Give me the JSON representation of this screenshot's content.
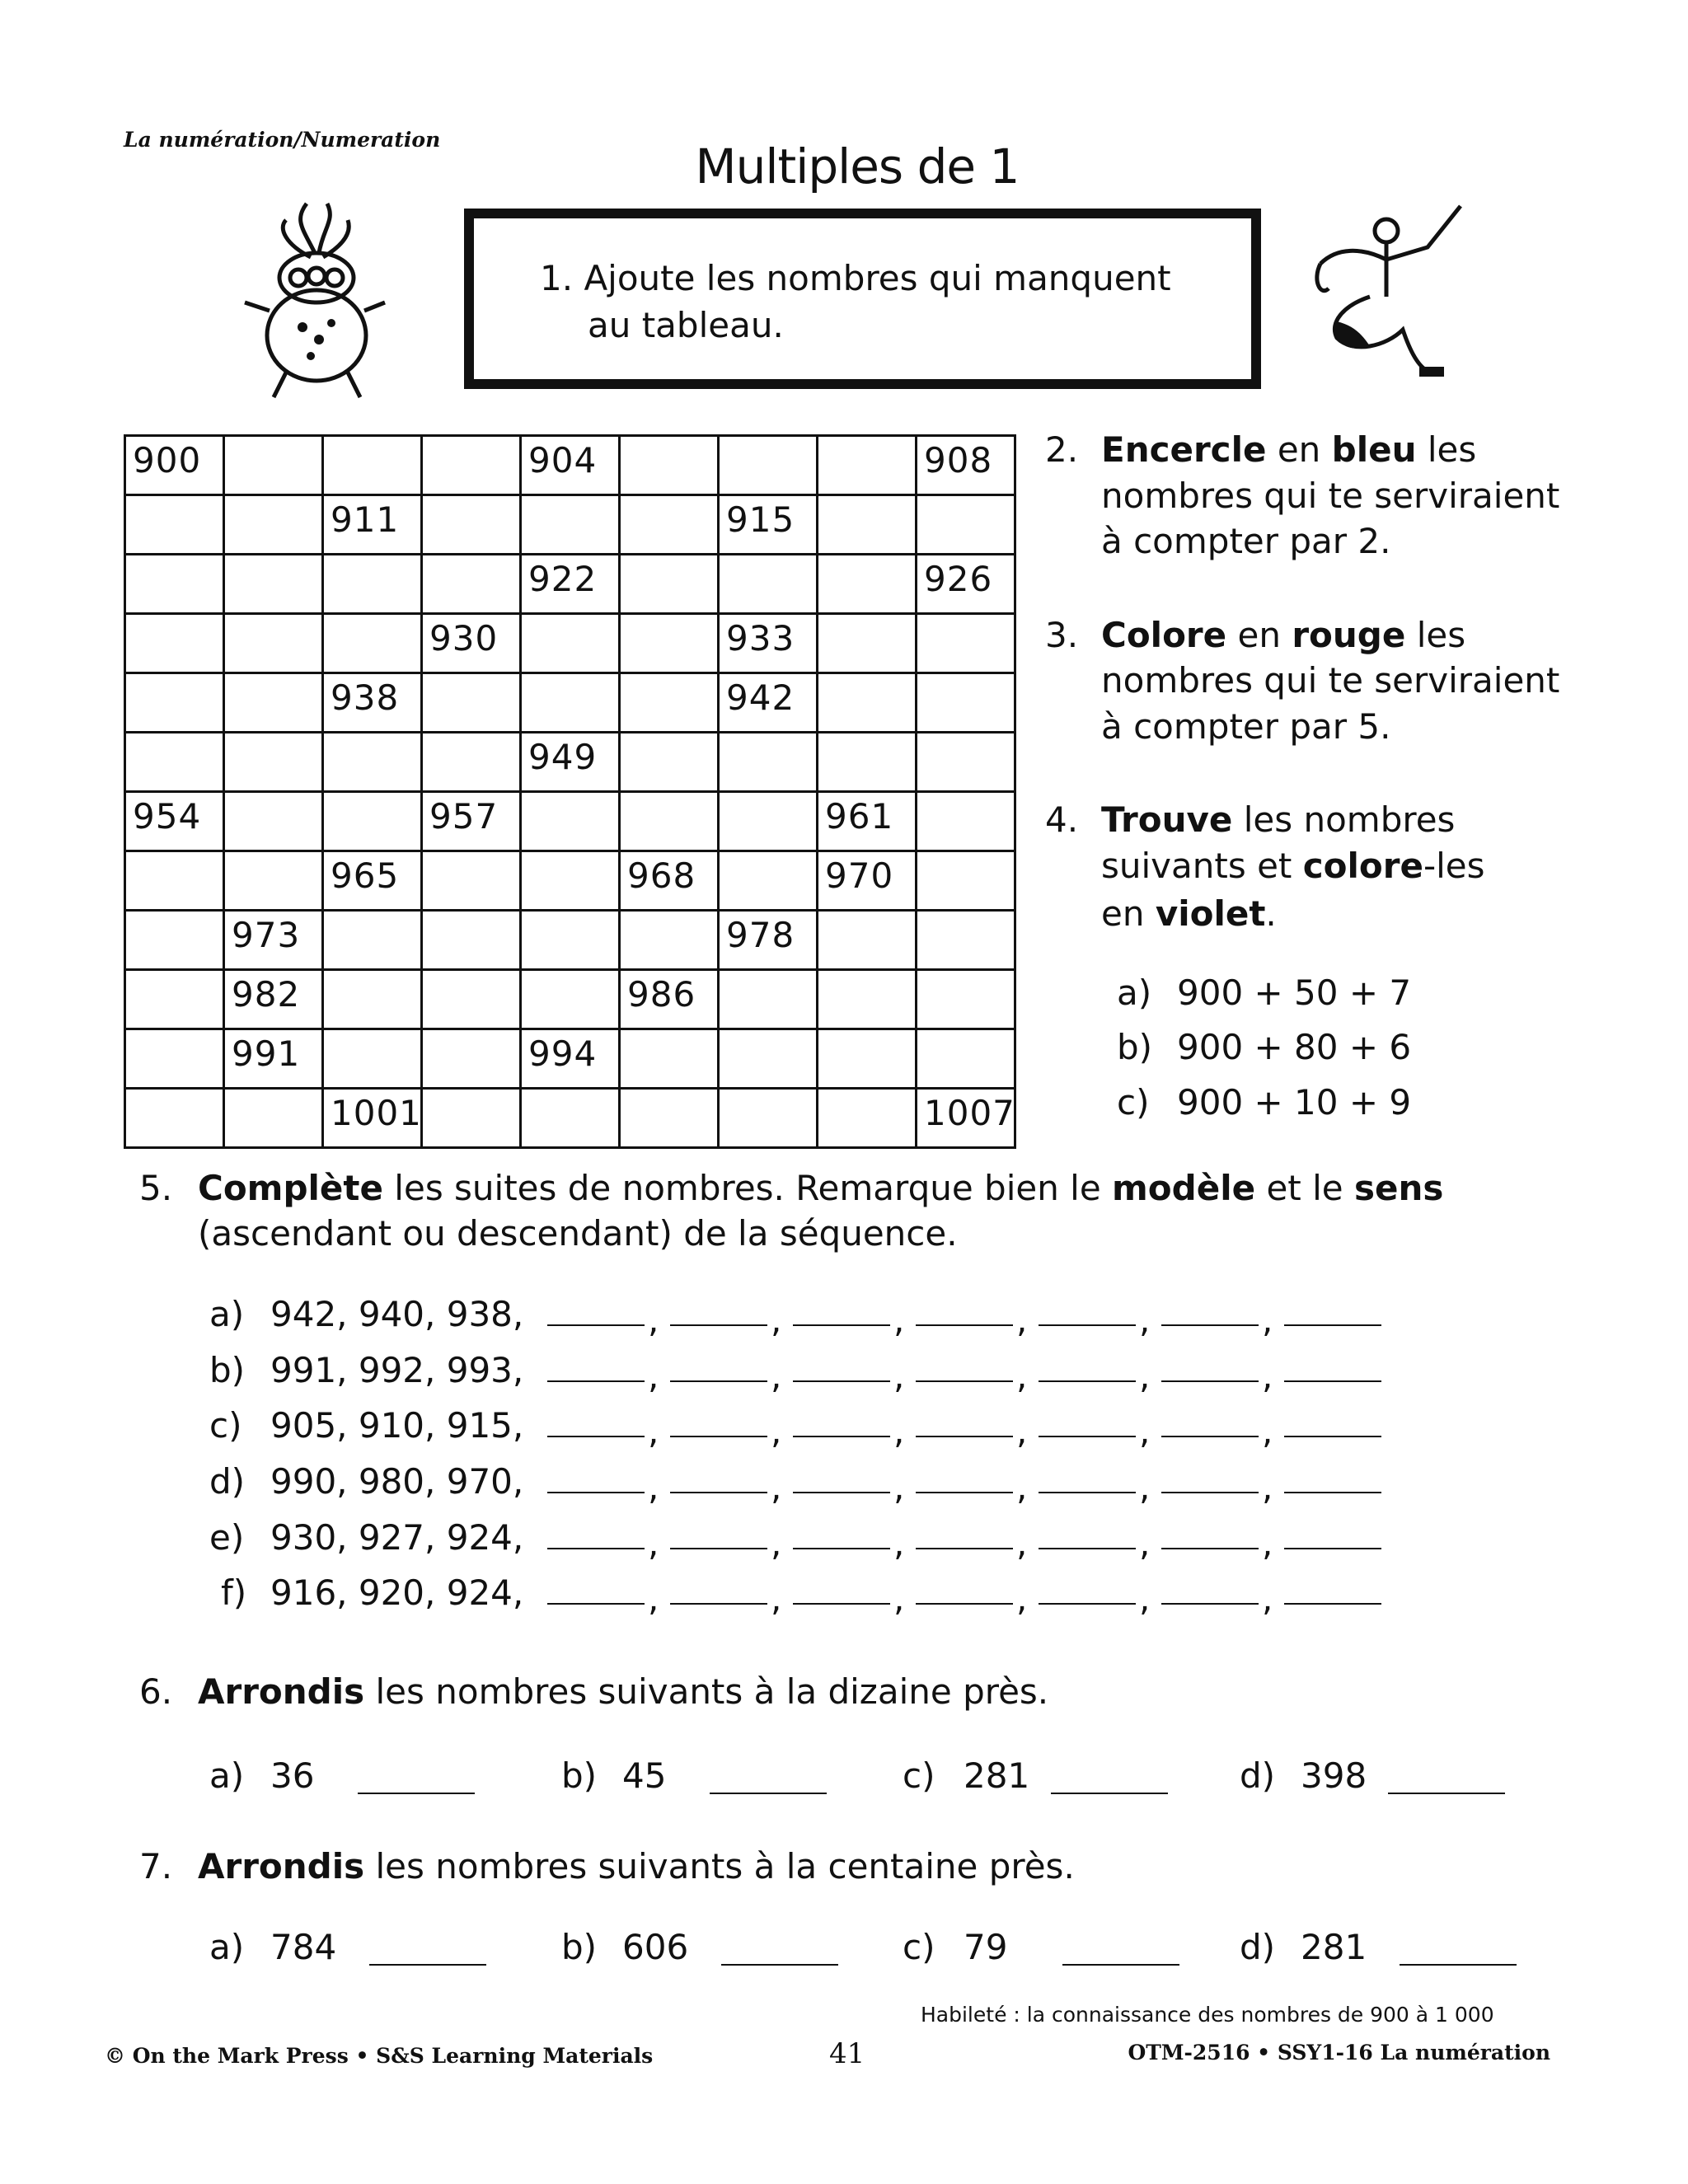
{
  "header": {
    "section": "La numération/Numeration",
    "title": "Multiples de 1"
  },
  "q1": {
    "number": "1.",
    "line1": "Ajoute les nombres qui manquent",
    "line2": "au tableau."
  },
  "grid": {
    "columns": 9,
    "rows": [
      [
        "900",
        "",
        "",
        "",
        "904",
        "",
        "",
        "",
        "908"
      ],
      [
        "",
        "",
        "911",
        "",
        "",
        "",
        "915",
        "",
        ""
      ],
      [
        "",
        "",
        "",
        "",
        "922",
        "",
        "",
        "",
        "926"
      ],
      [
        "",
        "",
        "",
        "930",
        "",
        "",
        "933",
        "",
        ""
      ],
      [
        "",
        "",
        "938",
        "",
        "",
        "",
        "942",
        "",
        ""
      ],
      [
        "",
        "",
        "",
        "",
        "949",
        "",
        "",
        "",
        ""
      ],
      [
        "954",
        "",
        "",
        "957",
        "",
        "",
        "",
        "961",
        ""
      ],
      [
        "",
        "",
        "965",
        "",
        "",
        "968",
        "",
        "970",
        ""
      ],
      [
        "",
        "973",
        "",
        "",
        "",
        "",
        "978",
        "",
        ""
      ],
      [
        "",
        "982",
        "",
        "",
        "",
        "986",
        "",
        "",
        ""
      ],
      [
        "",
        "991",
        "",
        "",
        "994",
        "",
        "",
        "",
        ""
      ],
      [
        "",
        "",
        "1001",
        "",
        "",
        "",
        "",
        "",
        "1007"
      ]
    ]
  },
  "q2": {
    "number": "2.",
    "lines": [
      [
        {
          "t": "Encercle",
          "b": true
        },
        {
          "t": " en ",
          "b": false
        },
        {
          "t": "bleu",
          "b": true
        },
        {
          "t": " les",
          "b": false
        }
      ],
      [
        {
          "t": "nombres qui te serviraient",
          "b": false
        }
      ],
      [
        {
          "t": "à compter par 2.",
          "b": false
        }
      ]
    ]
  },
  "q3": {
    "number": "3.",
    "lines": [
      [
        {
          "t": "Colore",
          "b": true
        },
        {
          "t": " en ",
          "b": false
        },
        {
          "t": "rouge",
          "b": true
        },
        {
          "t": " les",
          "b": false
        }
      ],
      [
        {
          "t": "nombres qui te serviraient",
          "b": false
        }
      ],
      [
        {
          "t": "à compter par 5.",
          "b": false
        }
      ]
    ]
  },
  "q4": {
    "number": "4.",
    "lines": [
      [
        {
          "t": "Trouve",
          "b": true
        },
        {
          "t": " les nombres",
          "b": false
        }
      ],
      [
        {
          "t": "suivants et ",
          "b": false
        },
        {
          "t": "colore",
          "b": true
        },
        {
          "t": "-les",
          "b": false
        }
      ],
      [
        {
          "t": "en ",
          "b": false
        },
        {
          "t": "violet",
          "b": true
        },
        {
          "t": ".",
          "b": false
        }
      ]
    ],
    "items": [
      {
        "label": "a)",
        "expr": "900 + 50 + 7"
      },
      {
        "label": "b)",
        "expr": "900 + 80 + 6"
      },
      {
        "label": "c)",
        "expr": "900 + 10 + 9"
      }
    ]
  },
  "q5": {
    "number": "5.",
    "lines": [
      [
        {
          "t": "Complète",
          "b": true
        },
        {
          "t": " les suites de nombres. Remarque bien le ",
          "b": false
        },
        {
          "t": "modèle",
          "b": true
        },
        {
          "t": " et le ",
          "b": false
        },
        {
          "t": "sens",
          "b": true
        }
      ],
      [
        {
          "t": "(ascendant ou descendant) de la séquence.",
          "b": false
        }
      ]
    ],
    "separator": ",",
    "blanks_per_item": 7,
    "items": [
      {
        "label": "a)",
        "given": "942, 940, 938,"
      },
      {
        "label": "b)",
        "given": "991, 992, 993,"
      },
      {
        "label": "c)",
        "given": "905, 910, 915,"
      },
      {
        "label": "d)",
        "given": "990, 980, 970,"
      },
      {
        "label": "e)",
        "given": "930, 927, 924,"
      },
      {
        "label": "f)",
        "given": "916, 920, 924,"
      }
    ]
  },
  "q6": {
    "number": "6.",
    "lines": [
      [
        {
          "t": "Arrondis",
          "b": true
        },
        {
          "t": " les nombres suivants à la dizaine près.",
          "b": false
        }
      ]
    ],
    "items": [
      {
        "label": "a)",
        "value": "36"
      },
      {
        "label": "b)",
        "value": "45"
      },
      {
        "label": "c)",
        "value": "281"
      },
      {
        "label": "d)",
        "value": "398"
      }
    ]
  },
  "q7": {
    "number": "7.",
    "lines": [
      [
        {
          "t": "Arrondis",
          "b": true
        },
        {
          "t": " les nombres suivants à la centaine près.",
          "b": false
        }
      ]
    ],
    "items": [
      {
        "label": "a)",
        "value": "784"
      },
      {
        "label": "b)",
        "value": "606"
      },
      {
        "label": "c)",
        "value": "79"
      },
      {
        "label": "d)",
        "value": "281"
      }
    ]
  },
  "footer": {
    "skill": "Habileté : la connaissance des nombres de 900 à 1 000",
    "copyright": "© On the Mark Press • S&S Learning Materials",
    "page": "41",
    "code": "OTM-2516 • SSY1-16 La numération"
  },
  "icons": [
    "monster-illustration",
    "creature-illustration"
  ]
}
